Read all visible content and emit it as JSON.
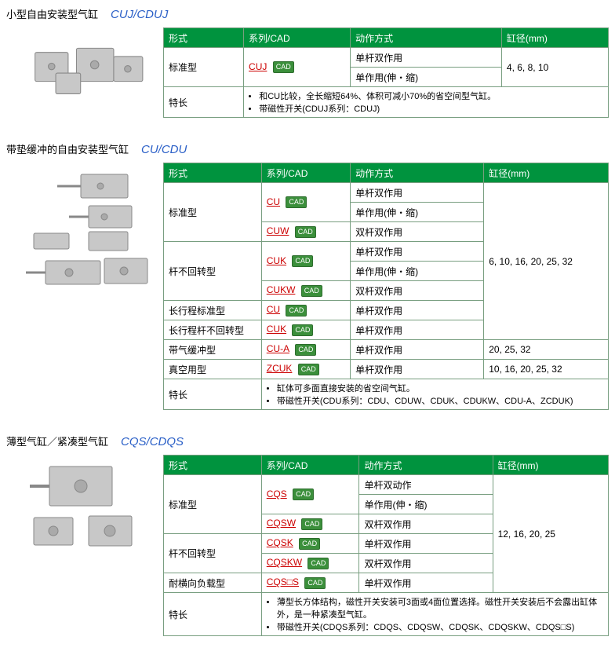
{
  "sections": [
    {
      "title_cn": "小型自由安装型气缸",
      "title_en": "CUJ/CDUJ",
      "cols": [
        0.18,
        0.24,
        0.34,
        0.24
      ],
      "headers": [
        "形式",
        "系列/CAD",
        "动作方式",
        "缸径(mm)"
      ],
      "rows": [
        {
          "c0": {
            "text": "标准型",
            "rowspan": 2
          },
          "c1": {
            "link": "CUJ",
            "cad": true,
            "rowspan": 2
          },
          "c2": {
            "text": "单杆双作用"
          },
          "c3": {
            "text": "4, 6, 8, 10",
            "rowspan": 2
          }
        },
        {
          "c2": {
            "text": "单作用(伸・缩)"
          }
        }
      ],
      "note": {
        "label": "特长",
        "items": [
          "和CU比较，全长缩短64%、体积可减小70%的省空间型气缸。",
          "带磁性开关(CDUJ系列：CDUJ)"
        ]
      }
    },
    {
      "title_cn": "带垫缓冲的自由安装型气缸",
      "title_en": "CU/CDU",
      "cols": [
        0.22,
        0.2,
        0.3,
        0.28
      ],
      "headers": [
        "形式",
        "系列/CAD",
        "动作方式",
        "缸径(mm)"
      ],
      "rows": [
        {
          "c0": {
            "text": "标准型",
            "rowspan": 3
          },
          "c1": {
            "link": "CU",
            "cad": true,
            "rowspan": 2
          },
          "c2": {
            "text": "单杆双作用"
          },
          "c3": {
            "text": "6, 10, 16, 20, 25, 32",
            "rowspan": 5
          }
        },
        {
          "c2": {
            "text": "单作用(伸・缩)"
          }
        },
        {
          "c1": {
            "link": "CUW",
            "cad": true
          },
          "c2": {
            "text": "双杆双作用"
          }
        },
        {
          "c0": {
            "text": "杆不回转型",
            "rowspan": 2
          },
          "c1": {
            "link": "CUK",
            "cad": true,
            "rowspan": 2
          },
          "c2": {
            "text": "单杆双作用"
          }
        },
        {
          "c2": {
            "text": "单作用(伸・缩)"
          }
        },
        {
          "c1": {
            "link": "CUKW",
            "cad": true,
            "skip_c0": true
          },
          "c2": {
            "text": "双杆双作用"
          }
        }
      ],
      "extra_rows": [
        {
          "c0": "长行程标准型",
          "c1": {
            "link": "CU",
            "cad": true
          },
          "c2": "单杆双作用",
          "above": true
        },
        {
          "c0": "长行程杆不回转型",
          "c1": {
            "link": "CUK",
            "cad": true
          },
          "c2": "单杆双作用",
          "above": true
        },
        {
          "c0": "带气缓冲型",
          "c1": {
            "link": "CU-A",
            "cad": true
          },
          "c2": "单杆双作用",
          "c3": "20, 25, 32"
        },
        {
          "c0": "真空用型",
          "c1": {
            "link": "ZCUK",
            "cad": true
          },
          "c2": "单杆双作用",
          "c3": "10, 16, 20, 25, 32"
        }
      ],
      "note": {
        "label": "特长",
        "items": [
          "缸体可多面直接安装的省空间气缸。",
          "带磁性开关(CDU系列：CDU、CDUW、CDUK、CDUKW、CDU-A、ZCDUK)"
        ]
      }
    },
    {
      "title_cn": "薄型气缸／紧凑型气缸",
      "title_en": "CQS/CDQS",
      "cols": [
        0.22,
        0.22,
        0.3,
        0.26
      ],
      "headers": [
        "形式",
        "系列/CAD",
        "动作方式",
        "缸径(mm)"
      ],
      "rows": [
        {
          "c0": {
            "text": "标准型",
            "rowspan": 3
          },
          "c1": {
            "link": "CQS",
            "cad": true,
            "rowspan": 2
          },
          "c2": {
            "text": "单杆双动作"
          },
          "c3": {
            "text": "12, 16, 20, 25",
            "rowspan": 6
          }
        },
        {
          "c2": {
            "text": "单作用(伸・缩)"
          }
        },
        {
          "c1": {
            "link": "CQSW",
            "cad": true
          },
          "c2": {
            "text": "双杆双作用"
          }
        },
        {
          "c0": {
            "text": "杆不回转型",
            "rowspan": 2
          },
          "c1": {
            "link": "CQSK",
            "cad": true
          },
          "c2": {
            "text": "单杆双作用"
          }
        },
        {
          "c1": {
            "link": "CQSKW",
            "cad": true
          },
          "c2": {
            "text": "双杆双作用"
          }
        },
        {
          "c0": {
            "text": "耐横向负载型"
          },
          "c1": {
            "link": "CQS□S",
            "cad": true
          },
          "c2": {
            "text": "单杆双作用"
          }
        }
      ],
      "note": {
        "label": "特长",
        "items": [
          "薄型长方体结构，磁性开关安装可3面或4面位置选择。磁性开关安装后不会露出缸体外，是一种紧凑型气缸。",
          "带磁性开关(CDQS系列：CDQS、CDQSW、CDQSK、CDQSKW、CDQS□S)"
        ]
      }
    }
  ],
  "cad_label": "CAD"
}
